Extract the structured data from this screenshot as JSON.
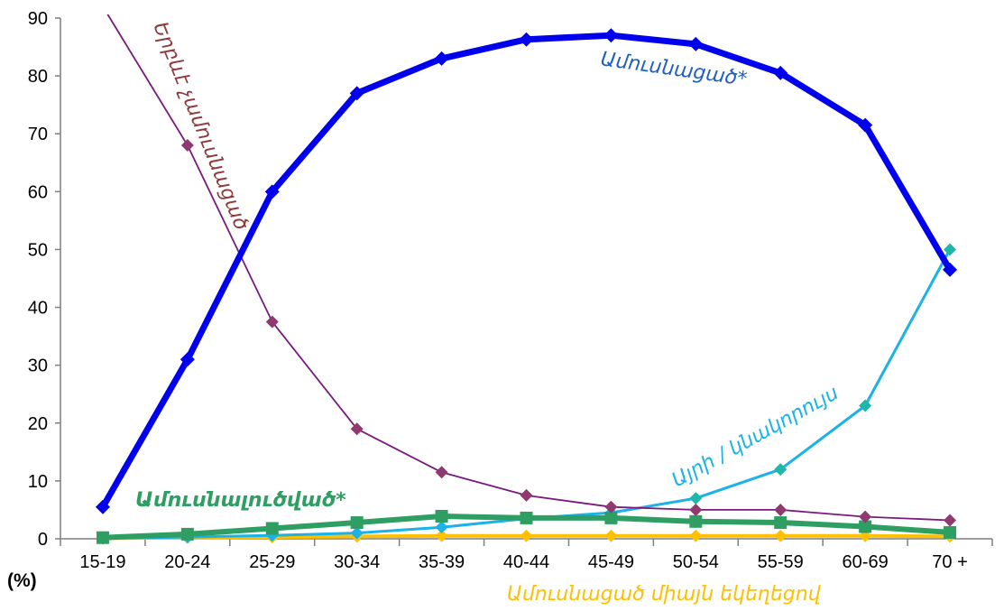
{
  "chart_data": {
    "type": "line",
    "categories": [
      "15-19",
      "20-24",
      "25-29",
      "30-34",
      "35-39",
      "40-44",
      "45-49",
      "50-54",
      "55-59",
      "60-69",
      "70 +"
    ],
    "ylim": [
      0,
      90
    ],
    "yticks": [
      0,
      10,
      20,
      30,
      40,
      50,
      60,
      70,
      80,
      90
    ],
    "ylabel": "(%)",
    "grid": false,
    "legend": "inline labels",
    "series": [
      {
        "name": "Ամուսնացած*",
        "color": "#0000ee",
        "marker": "diamond",
        "values": [
          5.5,
          31,
          60,
          77,
          83,
          86.3,
          87,
          85.5,
          80.5,
          71.5,
          46.5
        ]
      },
      {
        "name": "Երբևէ չամուսնացած",
        "color": "#7a1a7e",
        "marker": "diamond",
        "values": [
          92,
          68,
          37.5,
          19,
          11.5,
          7.5,
          5.5,
          5,
          5,
          3.8,
          3.2
        ]
      },
      {
        "name": "Այրի / կնակորույս",
        "color": "#1ab2e8",
        "marker": "diamond",
        "values": [
          0.1,
          0.3,
          0.6,
          1,
          2,
          3.5,
          4.5,
          7,
          12,
          23,
          50
        ]
      },
      {
        "name": "Ամուսնալուծված*",
        "color": "#2e9e63",
        "marker": "square",
        "values": [
          0.2,
          0.8,
          1.8,
          2.8,
          3.9,
          3.6,
          3.6,
          3,
          2.8,
          2.1,
          1.1
        ]
      },
      {
        "name": "Ամուսնացած միայն եկեղեցով",
        "color": "#ffc000",
        "marker": "diamond",
        "values": [
          0.1,
          0.2,
          0.3,
          0.4,
          0.5,
          0.5,
          0.5,
          0.5,
          0.5,
          0.5,
          0.4
        ]
      }
    ]
  }
}
